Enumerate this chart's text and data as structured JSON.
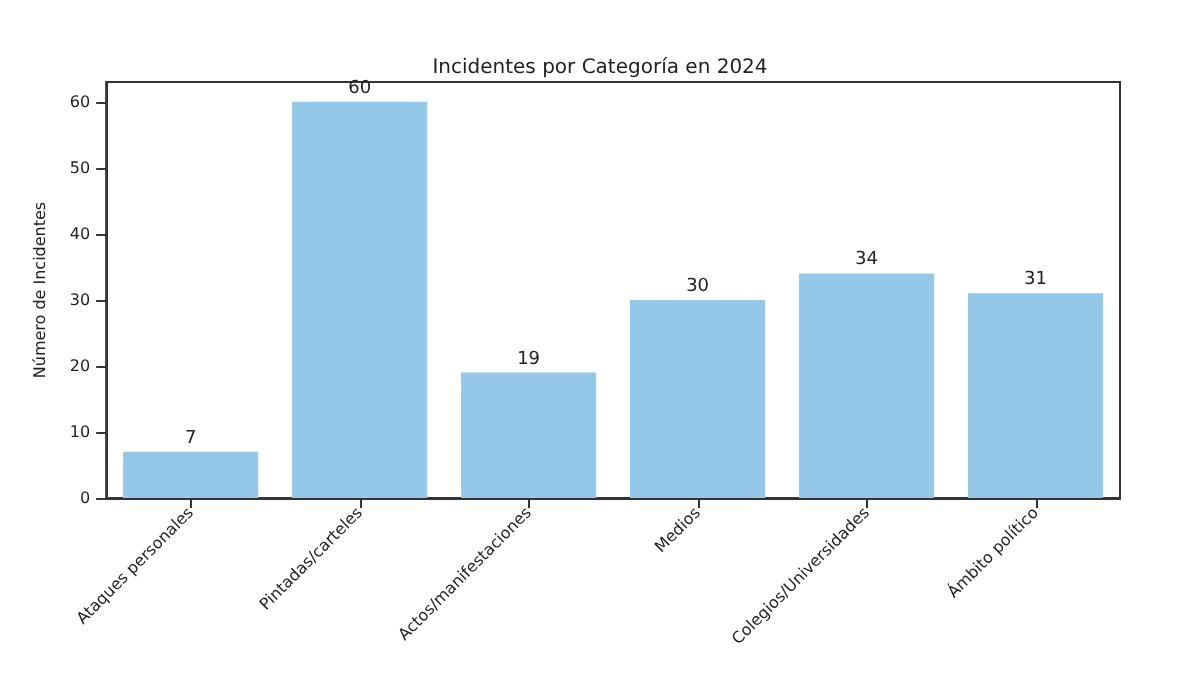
{
  "chart_data": {
    "type": "bar",
    "title": "Incidentes por Categoría en 2024",
    "ylabel": "Número de Incidentes",
    "categories": [
      "Ataques personales",
      "Pintadas/carteles",
      "Actos/manifestaciones",
      "Medios",
      "Colegios/Universidades",
      "Ámbito político"
    ],
    "values": [
      7,
      60,
      19,
      30,
      34,
      31
    ],
    "color": "#95c8e8",
    "data_labels": true,
    "ylim": [
      0,
      63
    ],
    "yticks": [
      0,
      10,
      20,
      30,
      40,
      50,
      60
    ],
    "grid": false
  }
}
